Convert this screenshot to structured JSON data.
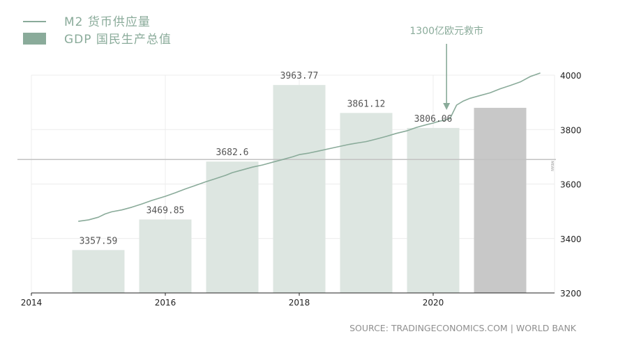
{
  "chart_data": {
    "type": "bar",
    "legend": [
      {
        "name": "M2  货币供应量",
        "kind": "line",
        "color": "#8aab9a"
      },
      {
        "name": "GDP  国民生产总值",
        "kind": "bar",
        "color": "#8aab9a"
      }
    ],
    "x_ticks": [
      "2014",
      "2016",
      "2018",
      "2020"
    ],
    "y_ticks": [
      "3200",
      "3400",
      "3600",
      "3800",
      "4000"
    ],
    "ylim": [
      3200,
      4000
    ],
    "bars": [
      {
        "year": 2015,
        "value": 3357.59,
        "label": "3357.59",
        "color": "#dde6e1"
      },
      {
        "year": 2016,
        "value": 3469.85,
        "label": "3469.85",
        "color": "#dde6e1"
      },
      {
        "year": 2017,
        "value": 3682.6,
        "label": "3682.6",
        "color": "#dde6e1"
      },
      {
        "year": 2018,
        "value": 3963.77,
        "label": "3963.77",
        "color": "#dde6e1"
      },
      {
        "year": 2019,
        "value": 3861.12,
        "label": "3861.12",
        "color": "#dde6e1"
      },
      {
        "year": 2020,
        "value": 3806.06,
        "label": "3806.06",
        "color": "#dde6e1"
      },
      {
        "year": 2021,
        "value": 3880,
        "label": "",
        "color": "#c8c8c8"
      }
    ],
    "m2_series": {
      "x": [
        2014.7,
        2014.85,
        2015.0,
        2015.1,
        2015.2,
        2015.35,
        2015.5,
        2015.65,
        2015.8,
        2016.0,
        2016.15,
        2016.3,
        2016.45,
        2016.6,
        2016.75,
        2016.9,
        2017.0,
        2017.15,
        2017.3,
        2017.45,
        2017.6,
        2017.75,
        2017.9,
        2018.0,
        2018.15,
        2018.3,
        2018.45,
        2018.6,
        2018.75,
        2018.9,
        2019.0,
        2019.15,
        2019.3,
        2019.45,
        2019.6,
        2019.75,
        2019.9,
        2020.0,
        2020.08,
        2020.17,
        2020.25,
        2020.35,
        2020.45,
        2020.55,
        2020.7,
        2020.85,
        2021.0,
        2021.15,
        2021.3,
        2021.45,
        2021.6
      ],
      "y": [
        3463,
        3468,
        3478,
        3490,
        3498,
        3505,
        3515,
        3527,
        3540,
        3555,
        3568,
        3582,
        3595,
        3608,
        3620,
        3632,
        3642,
        3652,
        3662,
        3670,
        3680,
        3690,
        3700,
        3708,
        3714,
        3722,
        3730,
        3738,
        3746,
        3752,
        3756,
        3765,
        3775,
        3786,
        3795,
        3808,
        3818,
        3824,
        3830,
        3835,
        3840,
        3890,
        3905,
        3915,
        3925,
        3935,
        3950,
        3962,
        3975,
        3995,
        4008
      ]
    },
    "mean_line": {
      "value": 3690,
      "label": "MEAN"
    },
    "annotation": {
      "text": "1300亿欧元救市",
      "x": 2020.2
    },
    "source": "SOURCE: TRADINGECONOMICS.COM | WORLD BANK",
    "grid": true
  }
}
